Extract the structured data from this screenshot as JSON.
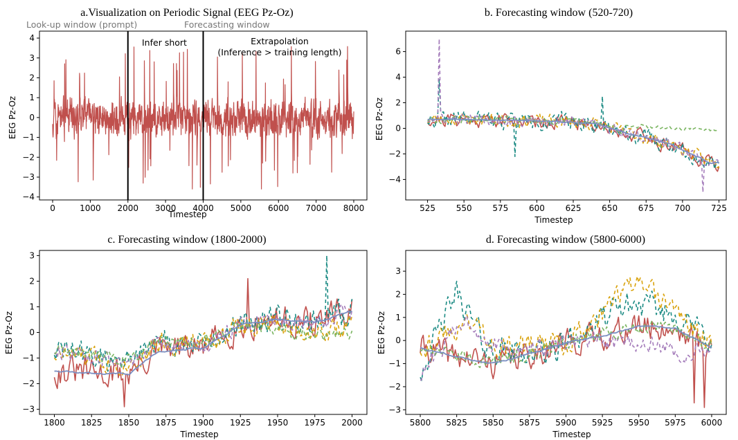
{
  "colors": {
    "actual": "#c0504d",
    "teal": "#1a8a83",
    "gold": "#d9a20c",
    "purple": "#a57dbb",
    "green": "#7ab561",
    "mean": "#7b8fc2",
    "axis": "#000000",
    "annotation_gray": "#777777"
  },
  "chart_data": [
    {
      "id": "a",
      "type": "line",
      "title": "a.Visualization on Periodic Signal (EEG Pz-Oz)",
      "xlabel": "Timestep",
      "ylabel": "EEG Pz-Oz",
      "xlim": [
        -350,
        8350
      ],
      "ylim": [
        -4.15,
        4.35
      ],
      "xticks": [
        0,
        1000,
        2000,
        3000,
        4000,
        5000,
        6000,
        7000,
        8000
      ],
      "yticks": [
        -4,
        -3,
        -2,
        -1,
        0,
        1,
        2,
        3,
        4
      ],
      "vlines": [
        2000,
        4000
      ],
      "annotations": {
        "lookup": "Look-up window (prompt)",
        "infer": "Infer short",
        "forecast": "Forecasting window",
        "extrap": "Extrapolation",
        "extrap_sub": "(Inference > training length)"
      },
      "series": [
        {
          "role": "actual",
          "x_range": [
            0,
            8000
          ],
          "n": 1500,
          "seed": 11,
          "center": -0.05,
          "amp": 1.05,
          "spike": 3.6
        }
      ]
    },
    {
      "id": "b",
      "type": "line",
      "title": "b. Forecasting window (520-720)",
      "xlabel": "Timestep",
      "ylabel": "EEG Pz-Oz",
      "xlim": [
        510,
        730
      ],
      "ylim": [
        -5.6,
        7.6
      ],
      "xticks": [
        525,
        550,
        575,
        600,
        625,
        650,
        675,
        700,
        725
      ],
      "yticks": [
        -4,
        -2,
        0,
        2,
        4,
        6
      ],
      "trend": [
        [
          520,
          0.7
        ],
        [
          560,
          0.7
        ],
        [
          600,
          0.6
        ],
        [
          640,
          0.4
        ],
        [
          660,
          -0.3
        ],
        [
          690,
          -1.2
        ],
        [
          720,
          -2.7
        ]
      ],
      "series": [
        {
          "role": "actual",
          "style": "solid",
          "noise": 0.9,
          "seed": 21
        },
        {
          "role": "teal",
          "style": "dashed",
          "noise": 1.0,
          "seed": 22,
          "spikes": [
            [
              533,
              3.8
            ],
            [
              585,
              -2.2
            ],
            [
              645,
              2.5
            ]
          ]
        },
        {
          "role": "gold",
          "style": "dashed",
          "noise": 0.8,
          "seed": 23
        },
        {
          "role": "purple",
          "style": "dashed",
          "noise": 0.7,
          "seed": 24,
          "spikes": [
            [
              533,
              7.0
            ],
            [
              714,
              -5.0
            ]
          ]
        },
        {
          "role": "green",
          "style": "dashed",
          "noise": 0.45,
          "seed": 25,
          "tail": [
            [
              660,
              0.2
            ],
            [
              720,
              -0.1
            ]
          ]
        },
        {
          "role": "mean",
          "style": "solid",
          "noise": 0.15,
          "seed": 26
        }
      ]
    },
    {
      "id": "c",
      "type": "line",
      "title": "c. Forecasting window (1800-2000)",
      "xlabel": "Timestep",
      "ylabel": "EEG Pz-Oz",
      "xlim": [
        1790,
        2010
      ],
      "ylim": [
        -3.2,
        3.2
      ],
      "xticks": [
        1800,
        1825,
        1850,
        1875,
        1900,
        1925,
        1950,
        1975,
        2000
      ],
      "yticks": [
        -3,
        -2,
        -1,
        0,
        1,
        2,
        3
      ],
      "trend": [
        [
          1800,
          -1.5
        ],
        [
          1830,
          -1.6
        ],
        [
          1850,
          -1.6
        ],
        [
          1870,
          -0.7
        ],
        [
          1900,
          -0.6
        ],
        [
          1925,
          0.3
        ],
        [
          1950,
          0.5
        ],
        [
          1975,
          0.4
        ],
        [
          2000,
          0.8
        ]
      ],
      "series": [
        {
          "role": "actual",
          "style": "solid",
          "noise": 0.9,
          "seed": 31,
          "spikes": [
            [
              1847,
              -2.9
            ],
            [
              1930,
              2.1
            ]
          ]
        },
        {
          "role": "teal",
          "style": "dashed",
          "noise": 0.8,
          "seed": 32,
          "offset": [
            [
              1800,
              1.2
            ],
            [
              1900,
              0.2
            ],
            [
              2000,
              0.0
            ]
          ],
          "spikes": [
            [
              1983,
              3.0
            ]
          ]
        },
        {
          "role": "gold",
          "style": "dashed",
          "noise": 0.7,
          "seed": 33,
          "offset": [
            [
              1800,
              1.0
            ],
            [
              1900,
              0.2
            ],
            [
              2000,
              -0.8
            ]
          ]
        },
        {
          "role": "purple",
          "style": "dashed",
          "noise": 0.5,
          "seed": 34,
          "offset": [
            [
              1800,
              1.2
            ],
            [
              1900,
              0.0
            ],
            [
              2000,
              0.0
            ]
          ]
        },
        {
          "role": "green",
          "style": "dashed",
          "noise": 0.4,
          "seed": 35,
          "offset": [
            [
              1800,
              1.1
            ],
            [
              1900,
              0.3
            ],
            [
              2000,
              -1.2
            ]
          ]
        },
        {
          "role": "mean",
          "style": "solid",
          "noise": 0.12,
          "seed": 36
        }
      ]
    },
    {
      "id": "d",
      "type": "line",
      "title": "d. Forecasting window (5800-6000)",
      "xlabel": "Timestep",
      "ylabel": "EEG Pz-Oz",
      "xlim": [
        5790,
        6010
      ],
      "ylim": [
        -3.2,
        3.9
      ],
      "xticks": [
        5800,
        5825,
        5850,
        5875,
        5900,
        5925,
        5950,
        5975,
        6000
      ],
      "yticks": [
        -3,
        -2,
        -1,
        0,
        1,
        2,
        3
      ],
      "trend": [
        [
          5800,
          -0.3
        ],
        [
          5825,
          -0.7
        ],
        [
          5850,
          -1.0
        ],
        [
          5875,
          -0.6
        ],
        [
          5900,
          -0.1
        ],
        [
          5925,
          0.2
        ],
        [
          5950,
          0.6
        ],
        [
          5975,
          0.5
        ],
        [
          6000,
          -0.3
        ]
      ],
      "series": [
        {
          "role": "actual",
          "style": "solid",
          "noise": 0.9,
          "seed": 41,
          "spikes": [
            [
              5995,
              -2.9
            ],
            [
              5988,
              -2.7
            ]
          ]
        },
        {
          "role": "teal",
          "style": "dashed",
          "noise": 0.9,
          "seed": 42,
          "offset": [
            [
              5800,
              -1.5
            ],
            [
              5825,
              4.0
            ],
            [
              5845,
              1.0
            ],
            [
              5890,
              -0.3
            ],
            [
              5940,
              1.5
            ],
            [
              6000,
              0.5
            ]
          ]
        },
        {
          "role": "gold",
          "style": "dashed",
          "noise": 0.8,
          "seed": 43,
          "offset": [
            [
              5800,
              0.0
            ],
            [
              5835,
              2.4
            ],
            [
              5860,
              0.8
            ],
            [
              5900,
              0.0
            ],
            [
              5945,
              2.7
            ],
            [
              6000,
              0.0
            ]
          ]
        },
        {
          "role": "purple",
          "style": "dashed",
          "noise": 0.6,
          "seed": 44,
          "offset": [
            [
              5800,
              -1.8
            ],
            [
              5830,
              2.5
            ],
            [
              5860,
              0.5
            ],
            [
              5900,
              0.0
            ],
            [
              5980,
              -1.5
            ],
            [
              6000,
              0.0
            ]
          ]
        },
        {
          "role": "green",
          "style": "dashed",
          "noise": 0.45,
          "seed": 45,
          "offset": [
            [
              5800,
              0.0
            ],
            [
              5900,
              0.1
            ],
            [
              6000,
              0.0
            ]
          ]
        },
        {
          "role": "mean",
          "style": "solid",
          "noise": 0.12,
          "seed": 46
        }
      ]
    }
  ]
}
